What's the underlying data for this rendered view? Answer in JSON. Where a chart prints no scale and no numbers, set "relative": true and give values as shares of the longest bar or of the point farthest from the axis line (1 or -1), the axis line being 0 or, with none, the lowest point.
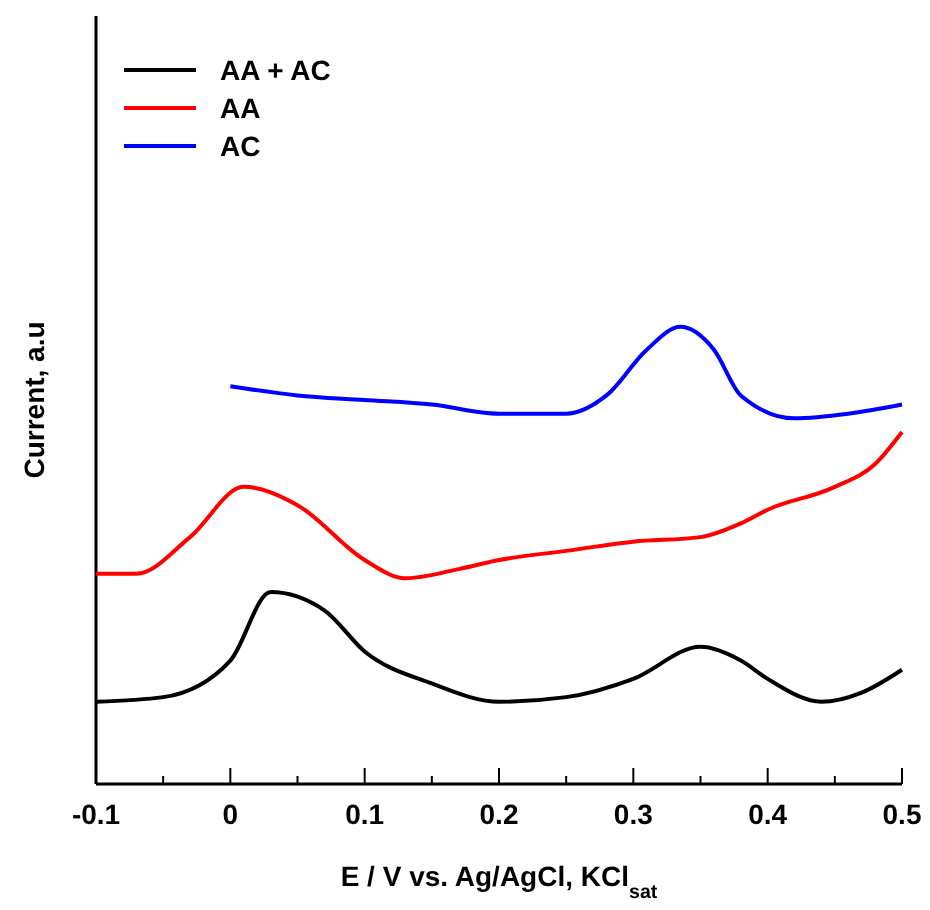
{
  "chart_data": {
    "type": "line",
    "xlabel": "E /  V  vs. Ag/AgCl, KCl$_{sat}$",
    "ylabel": "Current, a.u",
    "relative": true,
    "xlim": [
      -0.1,
      0.5
    ],
    "xticks": [
      -0.1,
      0.0,
      0.1,
      0.2,
      0.3,
      0.4,
      0.5
    ],
    "legend": "top left",
    "line_style": "solid",
    "marker": "none",
    "series": [
      {
        "name": "AA + AC",
        "color": "#000000",
        "x": [
          -0.1,
          -0.05,
          0.0,
          0.03,
          0.07,
          0.1,
          0.15,
          0.2,
          0.25,
          0.3,
          0.35,
          0.38,
          0.4,
          0.44,
          0.47,
          0.5
        ],
        "values": [
          0.18,
          0.19,
          0.27,
          0.42,
          0.38,
          0.29,
          0.22,
          0.18,
          0.19,
          0.23,
          0.3,
          0.27,
          0.23,
          0.18,
          0.2,
          0.25
        ]
      },
      {
        "name": "AA",
        "color": "#ff0000",
        "x": [
          -0.1,
          -0.07,
          -0.03,
          0.01,
          0.05,
          0.1,
          0.13,
          0.17,
          0.2,
          0.25,
          0.3,
          0.35,
          0.38,
          0.4,
          0.45,
          0.48,
          0.5
        ],
        "values": [
          0.46,
          0.46,
          0.54,
          0.65,
          0.61,
          0.49,
          0.45,
          0.47,
          0.49,
          0.51,
          0.53,
          0.54,
          0.57,
          0.6,
          0.65,
          0.7,
          0.77
        ]
      },
      {
        "name": "AC",
        "color": "#0000ff",
        "x": [
          0.0,
          0.05,
          0.1,
          0.15,
          0.2,
          0.25,
          0.28,
          0.31,
          0.335,
          0.36,
          0.38,
          0.42,
          0.46,
          0.5
        ],
        "values": [
          0.87,
          0.85,
          0.84,
          0.83,
          0.81,
          0.81,
          0.85,
          0.95,
          1,
          0.95,
          0.85,
          0.8,
          0.81,
          0.83
        ]
      }
    ]
  }
}
